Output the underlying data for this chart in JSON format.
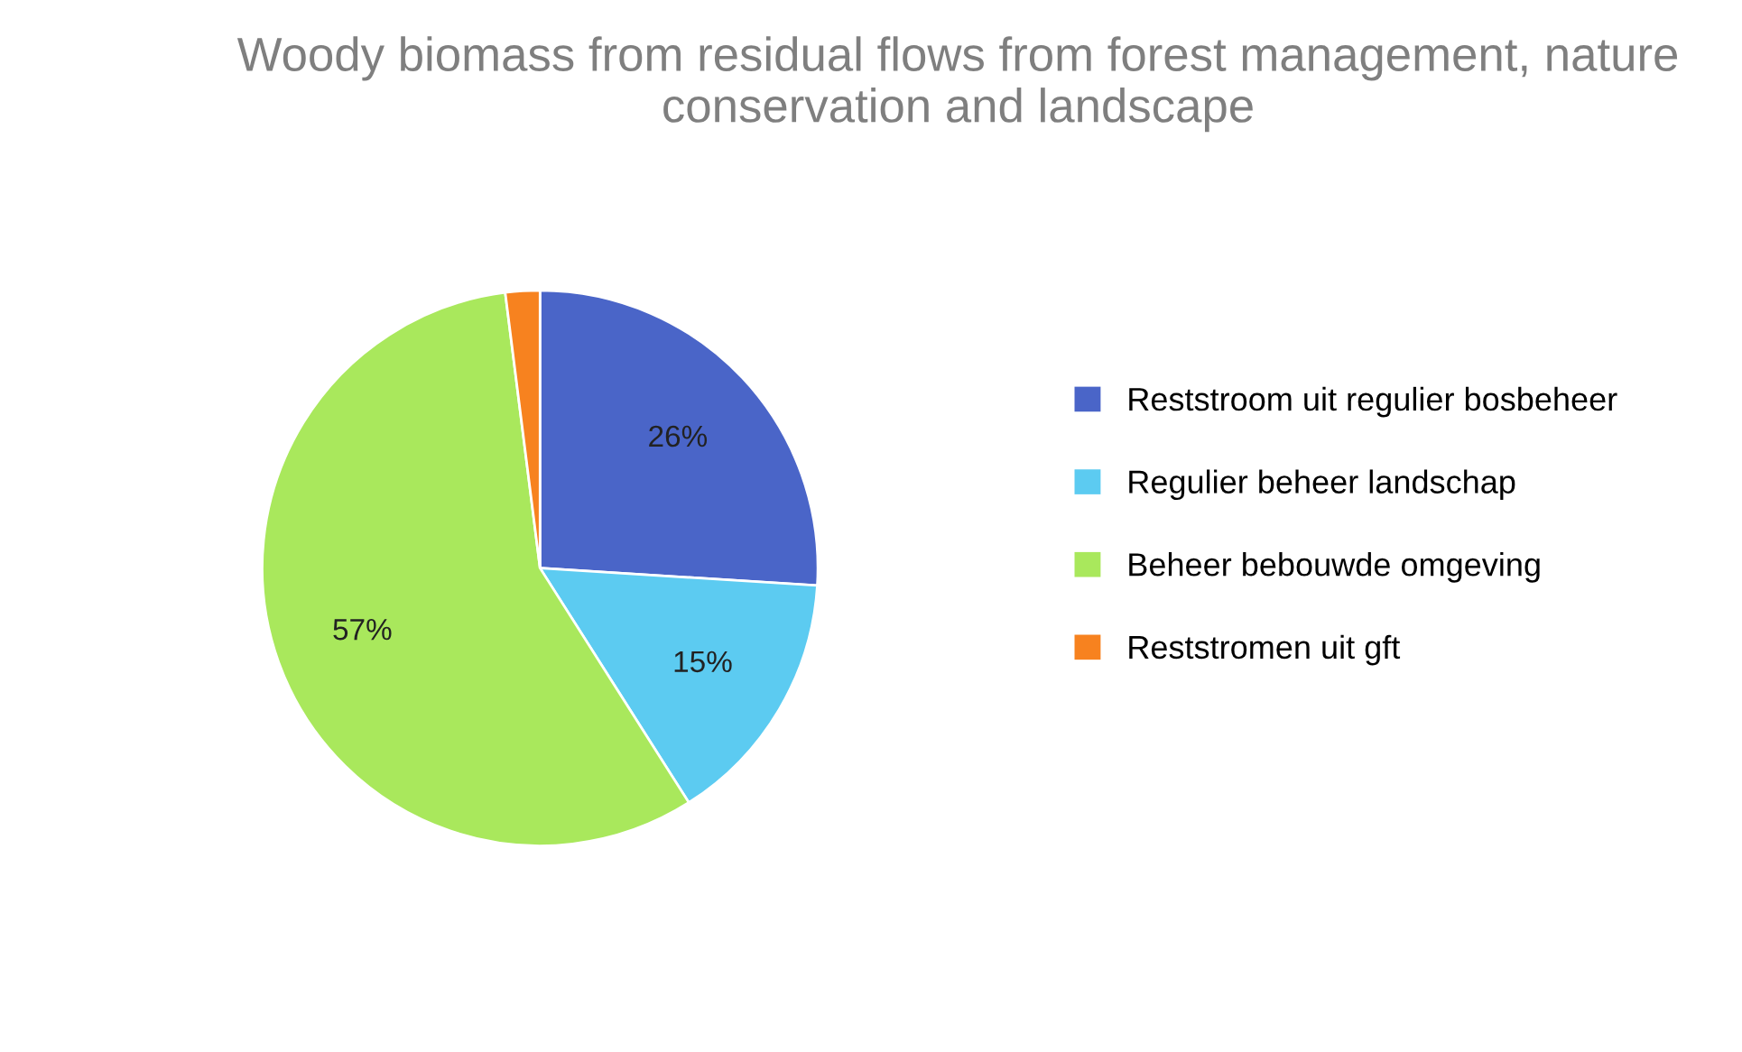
{
  "chart_data": {
    "type": "pie",
    "title": "Woody biomass from residual flows from forest management, nature conservation and landscape",
    "categories": [
      "Reststroom uit regulier bosbeheer",
      "Regulier beheer landschap",
      "Beheer bebouwde omgeving",
      "Reststromen uit gft"
    ],
    "values": [
      26,
      15,
      57,
      2
    ],
    "value_labels": [
      "26%",
      "15%",
      "57%",
      null
    ],
    "colors": [
      "#4a65c8",
      "#5ccbf1",
      "#a9e85c",
      "#f7821f"
    ],
    "legend": "right"
  }
}
